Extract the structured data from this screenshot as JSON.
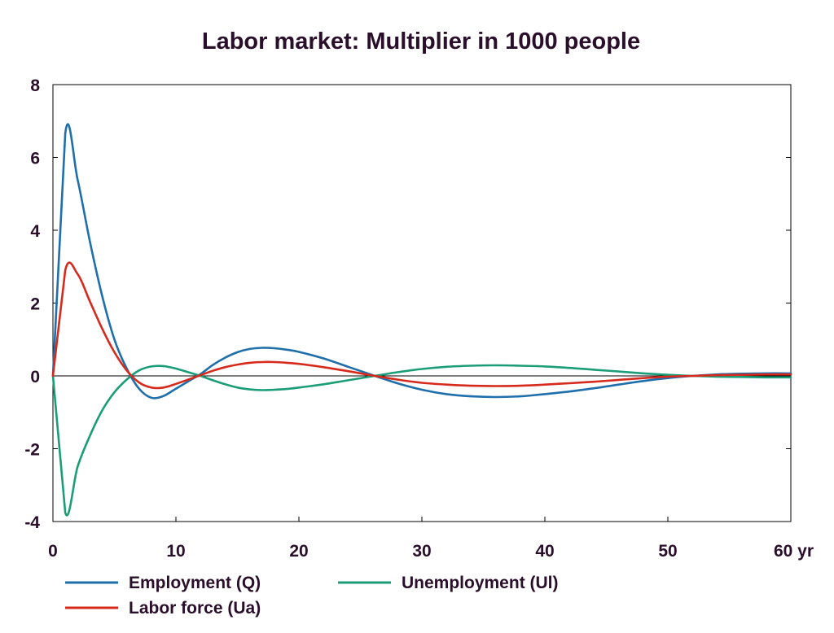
{
  "chart_data": {
    "type": "line",
    "title": "Labor market: Multiplier in 1000 people",
    "xlabel": "",
    "ylabel": "",
    "x_unit": "yr",
    "xlim": [
      0,
      60
    ],
    "ylim": [
      -4,
      8
    ],
    "x_ticks": [
      0,
      10,
      20,
      30,
      40,
      50,
      60
    ],
    "x_tick_labels": [
      "0",
      "10",
      "20",
      "30",
      "40",
      "50",
      "60 yr"
    ],
    "y_ticks": [
      -4,
      -2,
      0,
      2,
      4,
      6,
      8
    ],
    "y_tick_labels": [
      "-4",
      "-2",
      "0",
      "2",
      "4",
      "6",
      "8"
    ],
    "grid": false,
    "zero_line": true,
    "legend_position": "bottom",
    "x": [
      0,
      1,
      2,
      3,
      4,
      5,
      6,
      7,
      8,
      9,
      10,
      11,
      12,
      13,
      14,
      15,
      16,
      17,
      18,
      19,
      20,
      22,
      24,
      26,
      28,
      30,
      32,
      34,
      36,
      38,
      40,
      42,
      44,
      46,
      48,
      50,
      52,
      54,
      56,
      58,
      60
    ],
    "series": [
      {
        "name": "Employment (Q)",
        "color": "#1f6fab",
        "values": [
          0,
          6.65,
          5.4,
          3.7,
          2.2,
          1.0,
          0.2,
          -0.35,
          -0.6,
          -0.55,
          -0.35,
          -0.15,
          0.05,
          0.3,
          0.5,
          0.65,
          0.74,
          0.77,
          0.76,
          0.72,
          0.66,
          0.48,
          0.25,
          0.02,
          -0.2,
          -0.38,
          -0.5,
          -0.56,
          -0.58,
          -0.56,
          -0.5,
          -0.43,
          -0.34,
          -0.24,
          -0.14,
          -0.06,
          0.0,
          0.04,
          0.06,
          0.07,
          0.07
        ]
      },
      {
        "name": "Unemployment (Ul)",
        "color": "#1b9e77",
        "values": [
          0,
          -3.75,
          -2.5,
          -1.65,
          -0.95,
          -0.45,
          -0.1,
          0.15,
          0.26,
          0.27,
          0.2,
          0.1,
          0.0,
          -0.12,
          -0.23,
          -0.32,
          -0.37,
          -0.39,
          -0.38,
          -0.36,
          -0.32,
          -0.23,
          -0.12,
          -0.01,
          0.1,
          0.19,
          0.25,
          0.28,
          0.29,
          0.28,
          0.26,
          0.22,
          0.17,
          0.12,
          0.07,
          0.03,
          0.0,
          -0.02,
          -0.03,
          -0.04,
          -0.04
        ]
      },
      {
        "name": "Labor force (Ua)",
        "color": "#d62a1c",
        "values": [
          0,
          2.9,
          2.8,
          2.05,
          1.3,
          0.65,
          0.15,
          -0.18,
          -0.32,
          -0.32,
          -0.22,
          -0.1,
          0.02,
          0.14,
          0.24,
          0.31,
          0.36,
          0.38,
          0.38,
          0.36,
          0.33,
          0.24,
          0.13,
          0.01,
          -0.1,
          -0.19,
          -0.24,
          -0.27,
          -0.28,
          -0.27,
          -0.24,
          -0.2,
          -0.16,
          -0.11,
          -0.06,
          -0.02,
          0.0,
          0.02,
          0.03,
          0.04,
          0.04
        ]
      }
    ]
  }
}
